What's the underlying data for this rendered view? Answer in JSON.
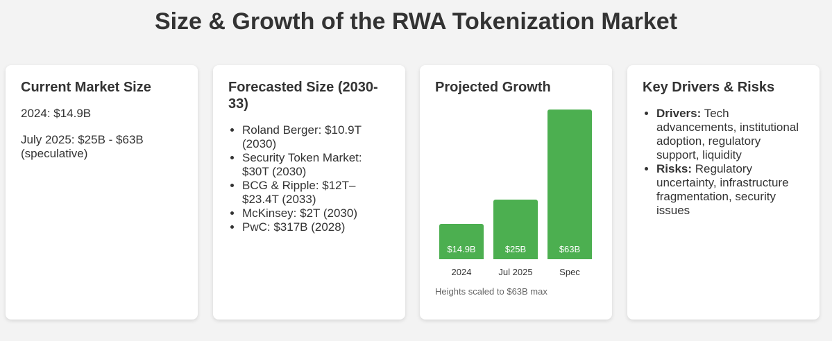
{
  "page": {
    "title": "Size & Growth of the RWA Tokenization Market"
  },
  "current": {
    "heading": "Current Market Size",
    "line1": "2024: $14.9B",
    "line2": "July 2025: $25B - $63B (speculative)"
  },
  "forecast": {
    "heading": "Forecasted Size (2030-33)",
    "items": [
      "Roland Berger: $10.9T (2030)",
      "Security Token Market: $30T (2030)",
      "BCG & Ripple: $12T–$23.4T (2033)",
      "McKinsey: $2T (2030)",
      "PwC: $317B (2028)"
    ]
  },
  "growth": {
    "heading": "Projected Growth",
    "note": "Heights scaled to $63B max"
  },
  "chart_data": {
    "type": "bar",
    "categories": [
      "2024",
      "Jul 2025",
      "Spec"
    ],
    "values": [
      14.9,
      25,
      63
    ],
    "data_labels": [
      "$14.9B",
      "$25B",
      "$63B"
    ],
    "ylim": [
      0,
      63
    ],
    "color": "#4caf50"
  },
  "drivers": {
    "heading": "Key Drivers & Risks",
    "drivers_label": "Drivers:",
    "drivers_text": "Tech advancements, institutional adoption, regulatory support, liquidity",
    "risks_label": "Risks:",
    "risks_text": "Regulatory uncertainty, infrastructure fragmentation, security issues"
  }
}
